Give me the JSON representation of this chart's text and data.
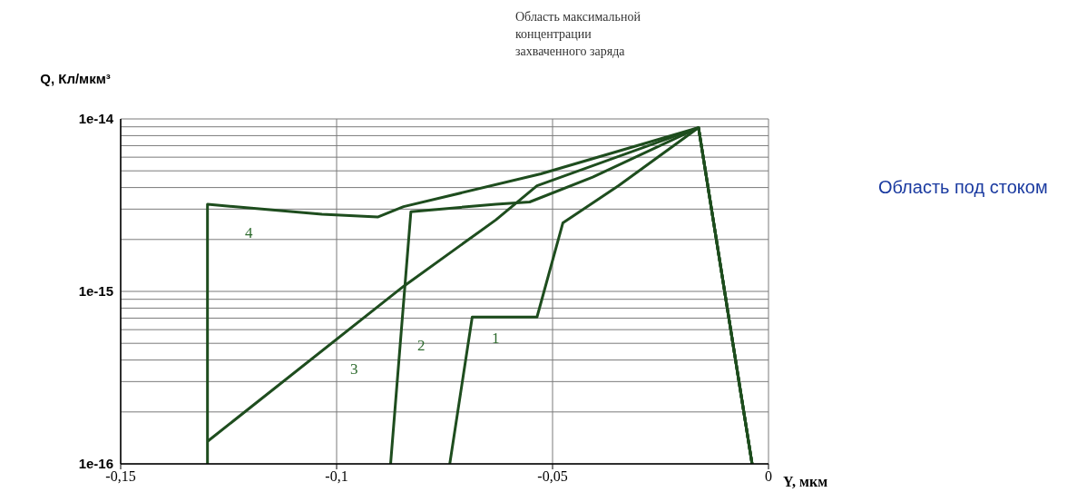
{
  "chart_data": {
    "type": "line",
    "xlabel": "Y, мкм",
    "ylabel": "Q, Кл/мкм³",
    "log": "y",
    "grid": true,
    "marker": "none",
    "xlim": [
      -0.15,
      0
    ],
    "xticks": [
      {
        "value": -0.15,
        "label": "-0,15"
      },
      {
        "value": -0.1,
        "label": "-0,1"
      },
      {
        "value": -0.05,
        "label": "-0,05"
      },
      {
        "value": 0,
        "label": "0"
      }
    ],
    "ylim": [
      1e-16,
      1e-14
    ],
    "yticks": [
      {
        "value": 1e-16,
        "label": "1e-16"
      },
      {
        "value": 2e-16,
        "label": null
      },
      {
        "value": 3e-16,
        "label": null
      },
      {
        "value": 4e-16,
        "label": null
      },
      {
        "value": 5e-16,
        "label": null
      },
      {
        "value": 6e-16,
        "label": null
      },
      {
        "value": 7e-16,
        "label": null
      },
      {
        "value": 8e-16,
        "label": null
      },
      {
        "value": 9e-16,
        "label": null
      },
      {
        "value": 1e-15,
        "label": "1e-15"
      },
      {
        "value": 2e-15,
        "label": null
      },
      {
        "value": 3e-15,
        "label": null
      },
      {
        "value": 4e-15,
        "label": null
      },
      {
        "value": 5e-15,
        "label": null
      },
      {
        "value": 6e-15,
        "label": null
      },
      {
        "value": 7e-15,
        "label": null
      },
      {
        "value": 8e-15,
        "label": null
      },
      {
        "value": 9e-15,
        "label": null
      },
      {
        "value": 1e-14,
        "label": "1e-14"
      }
    ],
    "series": [
      {
        "color": "#1e4d1e",
        "x": [
          -0.0738,
          -0.0686,
          -0.0536,
          -0.0476,
          -0.0347,
          -0.0162,
          -0.0038
        ],
        "values": [
          1e-16,
          7.1e-16,
          7.1e-16,
          2.5e-15,
          4.1e-15,
          8.9e-15,
          1e-16
        ]
      },
      {
        "color": "#1e4d1e",
        "x": [
          -0.0875,
          -0.0828,
          -0.0631,
          -0.0553,
          -0.0407,
          -0.0162,
          -0.0038
        ],
        "values": [
          1e-16,
          2.9e-15,
          3.2e-15,
          3.3e-15,
          4.6e-15,
          8.9e-15,
          1e-16
        ]
      },
      {
        "color": "#1e4d1e",
        "x": [
          -0.1299,
          -0.0845,
          -0.0631,
          -0.0536,
          -0.0162,
          -0.0038
        ],
        "values": [
          1.35e-16,
          1.07e-15,
          2.6e-15,
          4.1e-15,
          8.9e-15,
          1e-16
        ]
      },
      {
        "color": "#1e4d1e",
        "x": [
          -0.1299,
          -0.1299,
          -0.1034,
          -0.0905,
          -0.0845,
          -0.0527,
          -0.0162,
          -0.0038
        ],
        "values": [
          1e-16,
          3.2e-15,
          2.8e-15,
          2.7e-15,
          3.1e-15,
          4.8e-15,
          8.9e-15,
          1e-16
        ]
      }
    ],
    "annotations": [
      "Область максимальной концентрации захваченного заряда",
      "Область под стоком",
      "1",
      "2",
      "3",
      "4"
    ]
  }
}
